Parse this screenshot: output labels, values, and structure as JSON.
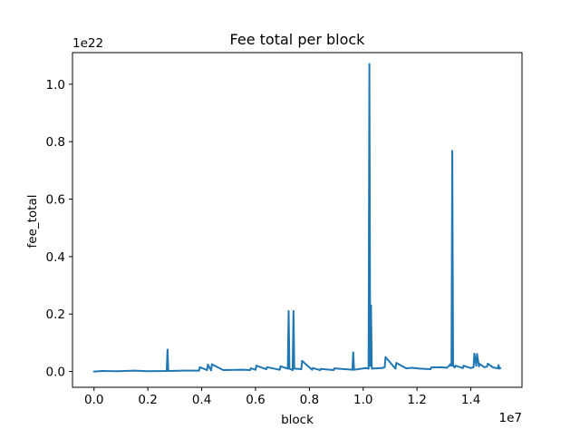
{
  "colors": {
    "series": "#1f77b4",
    "axis": "#000000",
    "background": "#ffffff"
  },
  "chart_data": {
    "type": "line",
    "title": "Fee total per block",
    "xlabel": "block",
    "ylabel": "fee_total",
    "x_offset_label": "1e7",
    "y_offset_label": "1e22",
    "xlim": [
      -800000,
      15900000
    ],
    "ylim": [
      -5.5e+20,
      1.11e+22
    ],
    "x_ticks": [
      {
        "value": 0,
        "label": "0.0"
      },
      {
        "value": 2000000,
        "label": "0.2"
      },
      {
        "value": 4000000,
        "label": "0.4"
      },
      {
        "value": 6000000,
        "label": "0.6"
      },
      {
        "value": 8000000,
        "label": "0.8"
      },
      {
        "value": 10000000,
        "label": "1.0"
      },
      {
        "value": 12000000,
        "label": "1.2"
      },
      {
        "value": 14000000,
        "label": "1.4"
      }
    ],
    "y_ticks": [
      {
        "value": 0,
        "label": "0.0"
      },
      {
        "value": 2e+21,
        "label": "0.2"
      },
      {
        "value": 4e+21,
        "label": "0.4"
      },
      {
        "value": 6e+21,
        "label": "0.6"
      },
      {
        "value": 8e+21,
        "label": "0.8"
      },
      {
        "value": 1e+22,
        "label": "1.0"
      }
    ],
    "grid": false,
    "legend": false,
    "series": [
      {
        "x": [
          0,
          300000,
          900000,
          1500000,
          2000000,
          2700000,
          2730000,
          2760000,
          3300000,
          3900000,
          3930000,
          4200000,
          4230000,
          4350000,
          4380000,
          4800000,
          5500000,
          5800000,
          5830000,
          6000000,
          6030000,
          6400000,
          6430000,
          6900000,
          6930000,
          7200000,
          7230000,
          7260000,
          7380000,
          7410000,
          7440000,
          7700000,
          7730000,
          8100000,
          8130000,
          8400000,
          8430000,
          8900000,
          8930000,
          9600000,
          9630000,
          9660000,
          10100000,
          10200000,
          10230000,
          10260000,
          10290000,
          10320000,
          10700000,
          10800000,
          10830000,
          11200000,
          11230000,
          11600000,
          11800000,
          12100000,
          12500000,
          12530000,
          12900000,
          13100000,
          13200000,
          13230000,
          13280000,
          13310000,
          13340000,
          13400000,
          13430000,
          13700000,
          13730000,
          14000000,
          14100000,
          14130000,
          14200000,
          14230000,
          14300000,
          14330000,
          14500000,
          14600000,
          14630000,
          14800000,
          14830000,
          15000000,
          15030000,
          15060000,
          15100000
        ],
        "y": [
          0,
          2e+19,
          1e+19,
          3e+19,
          1e+19,
          2e+19,
          7.6e+20,
          2e+19,
          3e+19,
          3e+19,
          1.5e+20,
          5e+19,
          2.4e+20,
          4e+19,
          2.5e+20,
          5e+19,
          6e+19,
          5e+19,
          1.1e+20,
          6e+19,
          2e+20,
          8e+19,
          1.5e+20,
          6e+19,
          1.8e+20,
          1e+20,
          2.1e+21,
          1e+20,
          5e+19,
          2.1e+21,
          1e+20,
          8e+19,
          3.7e+20,
          6e+19,
          1.2e+20,
          5e+19,
          9e+19,
          5e+19,
          1.1e+20,
          6e+19,
          6.6e+20,
          6e+19,
          1.2e+20,
          1e+20,
          1.07e+22,
          2e+20,
          2.3e+21,
          1e+20,
          1.2e+20,
          1.5e+20,
          5e+20,
          1e+20,
          3e+20,
          1.1e+20,
          1.3e+20,
          1e+20,
          8e+19,
          1.4e+20,
          1.5e+20,
          1.3e+20,
          2e+20,
          2.5e+20,
          2e+20,
          7.68e+21,
          2e+20,
          1.4e+20,
          2e+20,
          1.2e+20,
          2e+20,
          1.2e+20,
          1.5e+20,
          6.2e+20,
          2e+20,
          6.1e+20,
          1.8e+20,
          2.6e+20,
          1.5e+20,
          1.7e+20,
          2.7e+20,
          1.6e+20,
          1.4e+20,
          1.1e+20,
          2.2e+20,
          1e+20,
          1.2e+20
        ]
      }
    ]
  }
}
